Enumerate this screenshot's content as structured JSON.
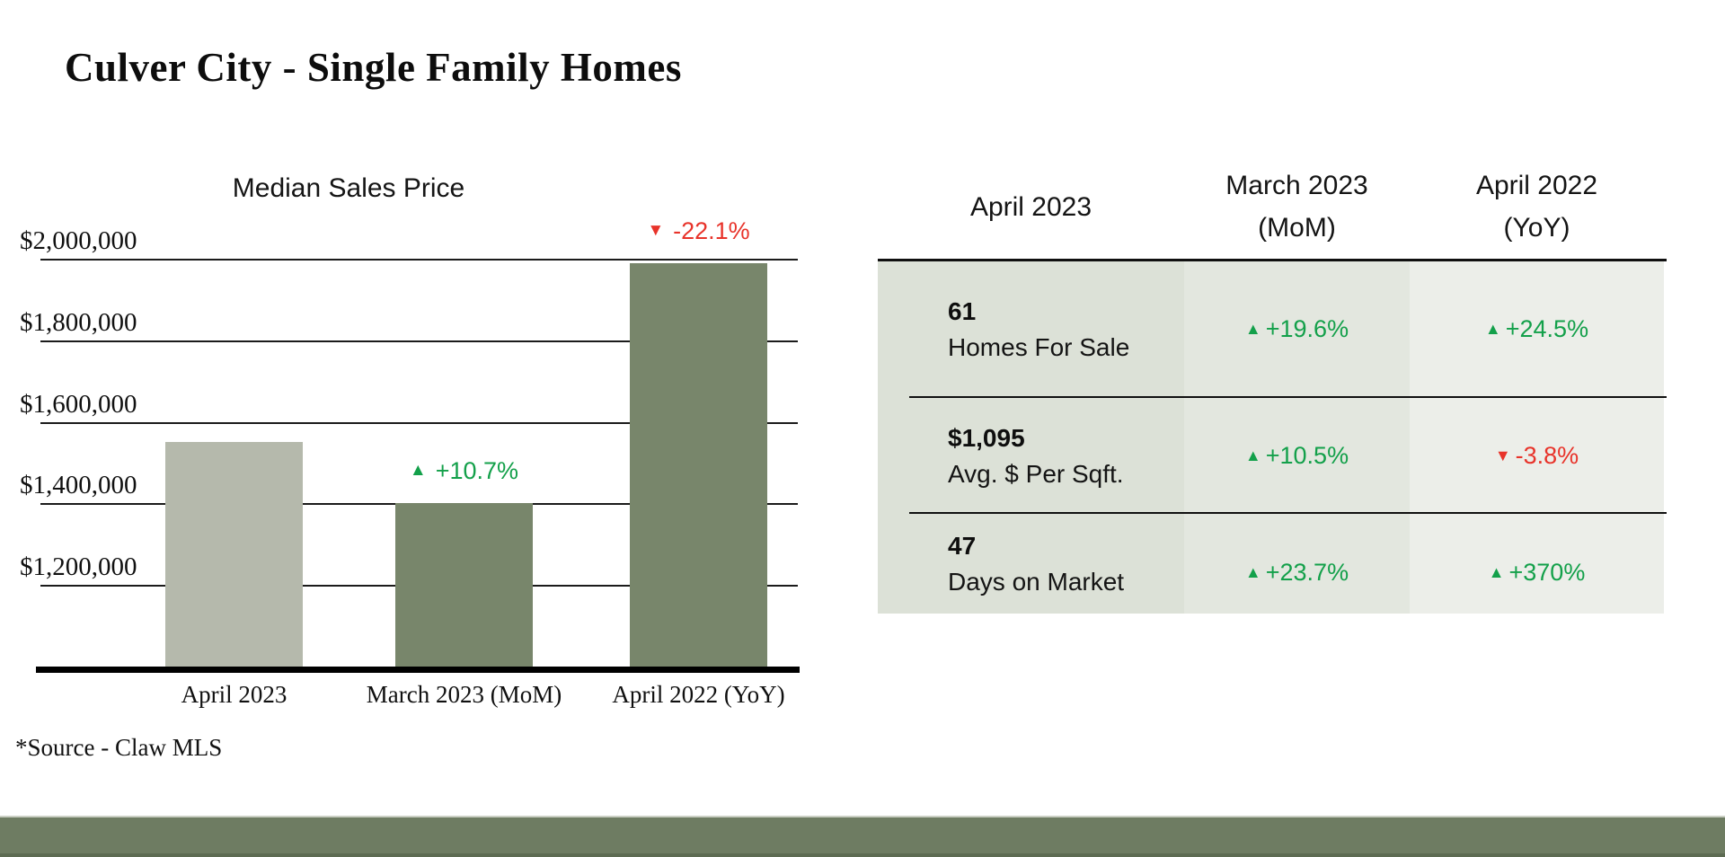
{
  "page_title": "Culver City - Single Family Homes",
  "source_note": "*Source - Claw MLS",
  "colors": {
    "positive_green": "#13a04a",
    "negative_red": "#e8332a",
    "bar_light_sage": "#b5b9ac",
    "bar_olive": "#78866b",
    "table_col1_bg": "#dce1d7",
    "table_col2_bg": "#e3e7df",
    "table_col3_bg": "#eceee9",
    "footer_olive": "#6e7c62"
  },
  "chart_data": {
    "type": "bar",
    "title": "Median Sales Price",
    "categories": [
      "April 2023",
      "March 2023 (MoM)",
      "April 2022 (YoY)"
    ],
    "values": [
      1550000,
      1400000,
      1990000
    ],
    "bar_colors": [
      "#b5b9ac",
      "#78866b",
      "#78866b"
    ],
    "changes": [
      null,
      {
        "dir": "up",
        "label": "+10.7%"
      },
      {
        "dir": "down",
        "label": "-22.1%"
      }
    ],
    "y_ticks": [
      {
        "value": 2000000,
        "label": "$2,000,000"
      },
      {
        "value": 1800000,
        "label": "$1,800,000"
      },
      {
        "value": 1600000,
        "label": "$1,600,000"
      },
      {
        "value": 1400000,
        "label": "$1,400,000"
      },
      {
        "value": 1200000,
        "label": "$1,200,000"
      }
    ],
    "ylim": [
      1000000,
      2000000
    ],
    "xlabel": "",
    "ylabel": "",
    "grid": true,
    "legend": false
  },
  "table": {
    "headers": [
      {
        "line1": "April 2023",
        "line2": ""
      },
      {
        "line1": "March 2023",
        "line2": "(MoM)"
      },
      {
        "line1": "April 2022",
        "line2": "(YoY)"
      }
    ],
    "rows": [
      {
        "value": "61",
        "label": "Homes For Sale",
        "mom": {
          "dir": "up",
          "label": "+19.6%"
        },
        "yoy": {
          "dir": "up",
          "label": "+24.5%"
        }
      },
      {
        "value": "$1,095",
        "label": "Avg. $ Per Sqft.",
        "mom": {
          "dir": "up",
          "label": "+10.5%"
        },
        "yoy": {
          "dir": "down",
          "label": "-3.8%"
        }
      },
      {
        "value": "47",
        "label": "Days on Market",
        "mom": {
          "dir": "up",
          "label": "+23.7%"
        },
        "yoy": {
          "dir": "up",
          "label": "+370%"
        }
      }
    ]
  }
}
